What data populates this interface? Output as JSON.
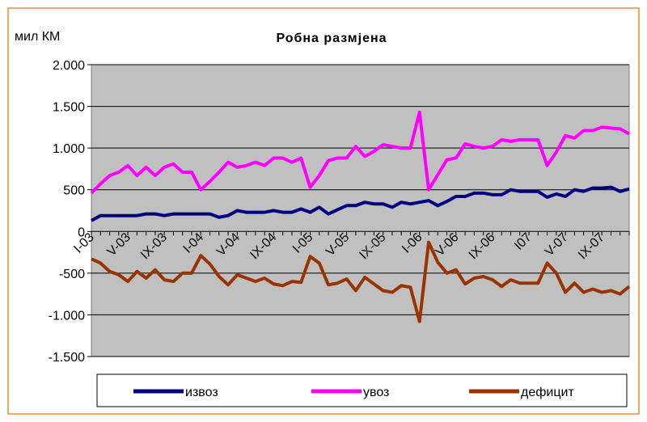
{
  "chart_data": {
    "type": "line",
    "title": "Робна размјена",
    "y_label": "мил КМ",
    "categories": [
      "I-03",
      null,
      null,
      null,
      "V-03",
      null,
      null,
      null,
      "IX-03",
      null,
      null,
      null,
      "I-04",
      null,
      null,
      null,
      "V-04",
      null,
      null,
      null,
      "IX-04",
      null,
      null,
      null,
      "I-05",
      null,
      null,
      null,
      "V-05",
      null,
      null,
      null,
      "IX-05",
      null,
      null,
      null,
      "I-06",
      null,
      null,
      null,
      "V-06",
      null,
      null,
      null,
      "IX-06",
      null,
      null,
      null,
      "I07",
      null,
      null,
      null,
      "V-07",
      null,
      null,
      null,
      "IX-07",
      null,
      null,
      null
    ],
    "series": [
      {
        "name": "извоз",
        "color": "#000080",
        "values": [
          130,
          190,
          190,
          190,
          190,
          190,
          210,
          210,
          190,
          210,
          210,
          210,
          210,
          210,
          170,
          190,
          250,
          230,
          230,
          230,
          250,
          230,
          230,
          270,
          230,
          290,
          210,
          260,
          310,
          310,
          350,
          330,
          330,
          290,
          350,
          330,
          350,
          370,
          310,
          360,
          420,
          420,
          460,
          460,
          440,
          440,
          500,
          480,
          480,
          480,
          410,
          450,
          420,
          500,
          480,
          520,
          520,
          530,
          480,
          510
        ]
      },
      {
        "name": "увоз",
        "color": "#ff00ff",
        "values": [
          460,
          570,
          670,
          710,
          790,
          670,
          770,
          670,
          770,
          810,
          710,
          710,
          500,
          600,
          710,
          830,
          770,
          790,
          830,
          790,
          880,
          880,
          830,
          880,
          530,
          670,
          850,
          880,
          880,
          1020,
          900,
          960,
          1040,
          1020,
          1000,
          1000,
          1430,
          500,
          680,
          860,
          880,
          1050,
          1020,
          1000,
          1020,
          1100,
          1080,
          1100,
          1100,
          1100,
          790,
          950,
          1150,
          1120,
          1210,
          1210,
          1250,
          1240,
          1230,
          1170
        ]
      },
      {
        "name": "дефицит",
        "color": "#993300",
        "values": [
          -330,
          -380,
          -480,
          -520,
          -600,
          -480,
          -560,
          -460,
          -580,
          -600,
          -500,
          -500,
          -290,
          -390,
          -540,
          -640,
          -520,
          -560,
          -600,
          -560,
          -630,
          -650,
          -600,
          -610,
          -300,
          -380,
          -640,
          -620,
          -570,
          -710,
          -550,
          -630,
          -710,
          -730,
          -650,
          -670,
          -1080,
          -130,
          -370,
          -500,
          -460,
          -630,
          -560,
          -540,
          -580,
          -660,
          -580,
          -620,
          -620,
          -620,
          -380,
          -500,
          -730,
          -620,
          -730,
          -690,
          -730,
          -710,
          -750,
          -660
        ]
      }
    ],
    "ylim": [
      -1500,
      2000
    ],
    "yticks": [
      {
        "value": -1500,
        "label": "-1.500"
      },
      {
        "value": -1000,
        "label": "-1.000"
      },
      -500,
      0,
      500,
      {
        "value": 1000,
        "label": "1.000"
      },
      {
        "value": 1500,
        "label": "1.500"
      },
      {
        "value": 2000,
        "label": "2.000"
      }
    ],
    "grid": true,
    "legend": "bottom"
  }
}
